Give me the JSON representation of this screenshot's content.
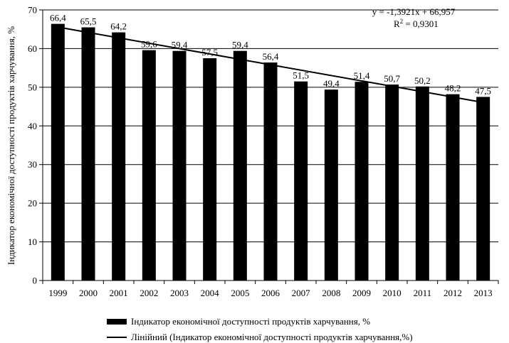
{
  "chart_data": {
    "type": "bar",
    "title": "",
    "xlabel": "",
    "ylabel": "Індикатор економічної доступності продуктів  харчування, %",
    "ylim": [
      0,
      70
    ],
    "yticks": [
      0,
      10,
      20,
      30,
      40,
      50,
      60,
      70
    ],
    "grid": true,
    "legend_position": "bottom",
    "bar_color": "#000000",
    "categories": [
      "1999",
      "2000",
      "2001",
      "2002",
      "2003",
      "2004",
      "2005",
      "2006",
      "2007",
      "2008",
      "2009",
      "2010",
      "2011",
      "2012",
      "2013"
    ],
    "series": [
      {
        "name": "Індикатор економічної доступності продуктів  харчування, %",
        "values": [
          66.4,
          65.5,
          64.2,
          59.6,
          59.4,
          57.5,
          59.4,
          56.4,
          51.5,
          49.4,
          51.4,
          50.7,
          50.2,
          48.2,
          47.5
        ],
        "value_labels": [
          "66,4",
          "65,5",
          "64,2",
          "59,6",
          "59,4",
          "57,5",
          "59,4",
          "56,4",
          "51,5",
          "49,4",
          "51,4",
          "50,7",
          "50,2",
          "48,2",
          "47,5"
        ]
      }
    ],
    "trendline": {
      "type": "linear",
      "name": "Лінійний (Індикатор економічної доступності продуктів  харчування,%)",
      "slope": -1.3921,
      "intercept": 66.957,
      "equation": "y = -1,3921x + 66,957",
      "r2_prefix": "R",
      "r2_exp": "2",
      "r2_value": " = 0,9301"
    }
  }
}
